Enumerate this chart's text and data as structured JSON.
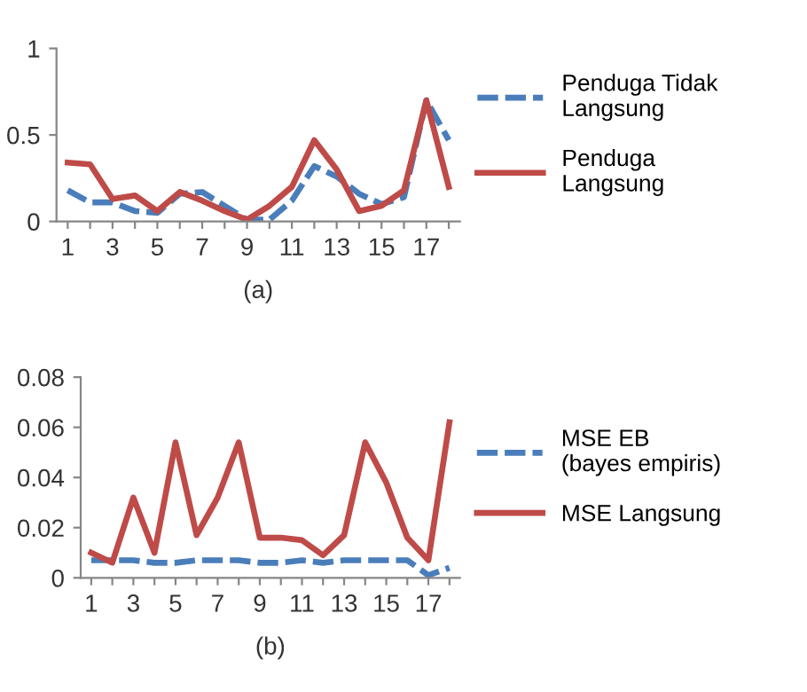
{
  "chart_data": [
    {
      "type": "line",
      "xlabel": "(a)",
      "categories": [
        "1",
        null,
        "3",
        null,
        "5",
        null,
        "7",
        null,
        "9",
        null,
        "11",
        null,
        "13",
        null,
        "15",
        null,
        "17",
        null
      ],
      "ylim": [
        0,
        1
      ],
      "yticks": [
        0,
        0.5,
        1
      ],
      "grid": false,
      "legend": "right",
      "marker": "none",
      "series": [
        {
          "name": "Penduga Tidak\nLangsung",
          "color": "#4a7ebb",
          "line_style": "dashed",
          "values": [
            0.18,
            0.11,
            0.11,
            0.06,
            0.05,
            0.16,
            0.17,
            0.09,
            0.01,
            0.01,
            0.12,
            0.32,
            0.26,
            0.16,
            0.1,
            0.14,
            0.7,
            0.47
          ]
        },
        {
          "name": "Penduga\nLangsung",
          "color": "#be4b48",
          "line_style": "solid",
          "values": [
            0.34,
            0.33,
            0.13,
            0.15,
            0.06,
            0.17,
            0.12,
            0.06,
            0.01,
            0.09,
            0.2,
            0.47,
            0.3,
            0.06,
            0.09,
            0.18,
            0.7,
            0.2
          ]
        }
      ]
    },
    {
      "type": "line",
      "xlabel": "(b)",
      "categories": [
        "1",
        null,
        "3",
        null,
        "5",
        null,
        "7",
        null,
        "9",
        null,
        "11",
        null,
        "13",
        null,
        "15",
        null,
        "17",
        null
      ],
      "ylim": [
        0,
        0.08
      ],
      "yticks": [
        0,
        0.02,
        0.04,
        0.06,
        0.08
      ],
      "grid": false,
      "legend": "right",
      "marker": "none",
      "series": [
        {
          "name": "MSE EB\n(bayes empiris)",
          "color": "#4a7ebb",
          "line_style": "dashed",
          "values": [
            0.007,
            0.007,
            0.007,
            0.006,
            0.006,
            0.007,
            0.007,
            0.007,
            0.006,
            0.006,
            0.007,
            0.006,
            0.007,
            0.007,
            0.007,
            0.007,
            0.001,
            0.004
          ]
        },
        {
          "name": "MSE Langsung",
          "color": "#be4b48",
          "line_style": "solid",
          "values": [
            0.01,
            0.006,
            0.032,
            0.01,
            0.054,
            0.017,
            0.032,
            0.054,
            0.016,
            0.016,
            0.015,
            0.009,
            0.017,
            0.054,
            0.038,
            0.016,
            0.007,
            0.062
          ]
        }
      ]
    }
  ]
}
